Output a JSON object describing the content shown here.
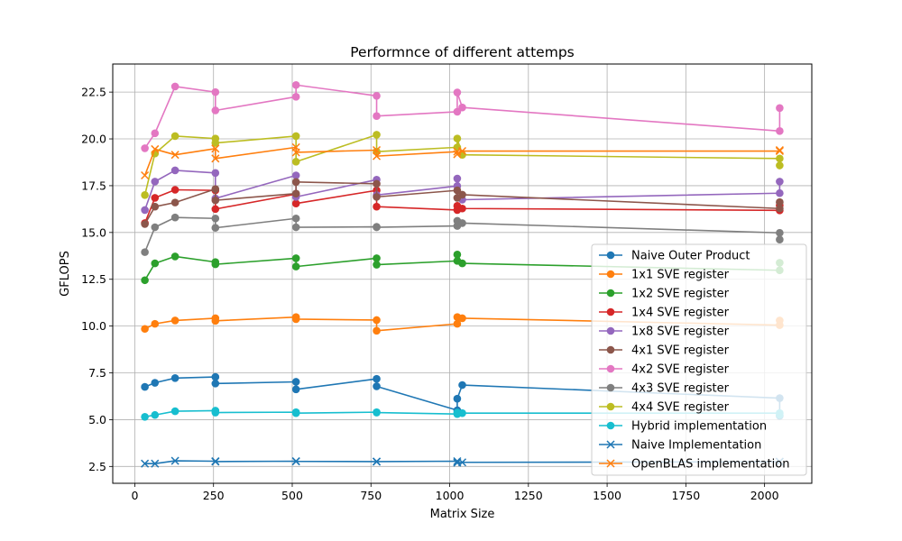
{
  "chart_data": {
    "type": "line",
    "title": "Performnce of different attemps",
    "xlabel": "Matrix Size",
    "ylabel": "GFLOPS",
    "xlim": [
      -70,
      2150
    ],
    "ylim": [
      1.6,
      24.0
    ],
    "xticks": [
      0,
      250,
      500,
      750,
      1000,
      1250,
      1500,
      1750,
      2000
    ],
    "xtick_labels": [
      "0",
      "250",
      "500",
      "750",
      "1000",
      "1250",
      "1500",
      "1750",
      "2000"
    ],
    "yticks": [
      2.5,
      5.0,
      7.5,
      10.0,
      12.5,
      15.0,
      17.5,
      20.0,
      22.5
    ],
    "ytick_labels": [
      "2.5",
      "5.0",
      "7.5",
      "10.0",
      "12.5",
      "15.0",
      "17.5",
      "20.0",
      "22.5"
    ],
    "grid": true,
    "legend_position": "lower-right",
    "series": [
      {
        "name": "Naive Outer Product",
        "color": "#1f77b4",
        "marker": "circle",
        "x": [
          32,
          64,
          128,
          256,
          256,
          512,
          512,
          768,
          768,
          1024,
          1024,
          1040,
          2048,
          2048
        ],
        "y": [
          6.75,
          6.97,
          7.22,
          7.28,
          6.93,
          7.02,
          6.62,
          7.18,
          6.78,
          5.5,
          6.12,
          6.85,
          6.15,
          5.2
        ]
      },
      {
        "name": "1x1 SVE register",
        "color": "#ff7f0e",
        "marker": "circle",
        "x": [
          32,
          64,
          128,
          256,
          256,
          512,
          512,
          768,
          768,
          1024,
          1024,
          1040,
          2048,
          2048
        ],
        "y": [
          9.85,
          10.12,
          10.3,
          10.42,
          10.28,
          10.48,
          10.37,
          10.32,
          9.75,
          10.12,
          10.48,
          10.42,
          10.05,
          10.3
        ]
      },
      {
        "name": "1x2 SVE register",
        "color": "#2ca02c",
        "marker": "circle",
        "x": [
          32,
          64,
          128,
          256,
          256,
          512,
          512,
          768,
          768,
          1024,
          1024,
          1040,
          2048,
          2048
        ],
        "y": [
          12.45,
          13.35,
          13.72,
          13.42,
          13.3,
          13.62,
          13.18,
          13.62,
          13.28,
          13.48,
          13.82,
          13.35,
          12.98,
          13.38
        ]
      },
      {
        "name": "1x4 SVE register",
        "color": "#d62728",
        "marker": "circle",
        "x": [
          32,
          64,
          128,
          256,
          256,
          512,
          512,
          768,
          768,
          1024,
          1024,
          1040,
          2048,
          2048
        ],
        "y": [
          15.5,
          16.85,
          17.28,
          17.25,
          16.25,
          17.05,
          16.55,
          17.25,
          16.38,
          16.2,
          16.42,
          16.28,
          16.18,
          16.45
        ]
      },
      {
        "name": "1x8 SVE register",
        "color": "#9467bd",
        "marker": "circle",
        "x": [
          32,
          64,
          128,
          256,
          256,
          512,
          512,
          768,
          768,
          1024,
          1024,
          1040,
          2048,
          2048
        ],
        "y": [
          16.2,
          17.72,
          18.32,
          18.18,
          16.82,
          18.05,
          16.9,
          17.82,
          17.0,
          17.48,
          17.88,
          16.75,
          17.1,
          17.72
        ]
      },
      {
        "name": "4x1 SVE register",
        "color": "#8c564b",
        "marker": "circle",
        "x": [
          32,
          64,
          128,
          256,
          256,
          512,
          512,
          768,
          768,
          1024,
          1024,
          1040,
          2048,
          2048
        ],
        "y": [
          15.45,
          16.38,
          16.6,
          17.32,
          16.72,
          17.08,
          17.7,
          17.6,
          16.9,
          17.25,
          16.85,
          17.02,
          16.28,
          16.62
        ]
      },
      {
        "name": "4x2 SVE register",
        "color": "#e377c2",
        "marker": "circle",
        "x": [
          32,
          64,
          128,
          256,
          256,
          512,
          512,
          768,
          768,
          1024,
          1024,
          1040,
          2048,
          2048
        ],
        "y": [
          19.5,
          20.3,
          22.8,
          22.5,
          21.52,
          22.25,
          22.88,
          22.3,
          21.22,
          21.45,
          22.48,
          21.68,
          20.42,
          21.65
        ]
      },
      {
        "name": "4x3 SVE register",
        "color": "#7f7f7f",
        "marker": "circle",
        "x": [
          32,
          64,
          128,
          256,
          256,
          512,
          512,
          768,
          768,
          1024,
          1024,
          1040,
          2048,
          2048
        ],
        "y": [
          13.95,
          15.28,
          15.8,
          15.75,
          15.25,
          15.75,
          15.28,
          15.3,
          15.28,
          15.35,
          15.62,
          15.5,
          14.98,
          14.62
        ]
      },
      {
        "name": "4x4 SVE register",
        "color": "#bcbd22",
        "marker": "circle",
        "x": [
          32,
          64,
          128,
          256,
          256,
          512,
          512,
          768,
          768,
          1024,
          1024,
          1040,
          2048,
          2048
        ],
        "y": [
          17.0,
          19.22,
          20.15,
          20.02,
          19.78,
          20.15,
          18.78,
          20.22,
          19.32,
          19.55,
          20.02,
          19.15,
          18.95,
          18.58
        ]
      },
      {
        "name": "Hybrid implementation",
        "color": "#17becf",
        "marker": "circle",
        "x": [
          32,
          64,
          128,
          256,
          256,
          512,
          512,
          768,
          768,
          1024,
          1024,
          1040,
          2048,
          2048
        ],
        "y": [
          5.15,
          5.25,
          5.45,
          5.48,
          5.38,
          5.4,
          5.35,
          5.4,
          5.38,
          5.3,
          5.38,
          5.35,
          5.35,
          5.25
        ]
      },
      {
        "name": "Naive Implementation",
        "color": "#1f77b4",
        "marker": "x",
        "x": [
          32,
          64,
          128,
          256,
          256,
          512,
          512,
          768,
          768,
          1024,
          1024,
          1040,
          2048,
          2048
        ],
        "y": [
          2.65,
          2.65,
          2.8,
          2.78,
          2.76,
          2.78,
          2.77,
          2.76,
          2.76,
          2.78,
          2.7,
          2.72,
          2.75,
          2.76
        ]
      },
      {
        "name": "OpenBLAS implementation",
        "color": "#ff7f0e",
        "marker": "x",
        "x": [
          32,
          64,
          128,
          256,
          256,
          512,
          512,
          768,
          768,
          1024,
          1024,
          1040,
          2048,
          2048
        ],
        "y": [
          18.05,
          19.45,
          19.15,
          19.48,
          18.95,
          19.55,
          19.28,
          19.4,
          19.08,
          19.32,
          19.18,
          19.35,
          19.35,
          19.4
        ]
      }
    ]
  }
}
